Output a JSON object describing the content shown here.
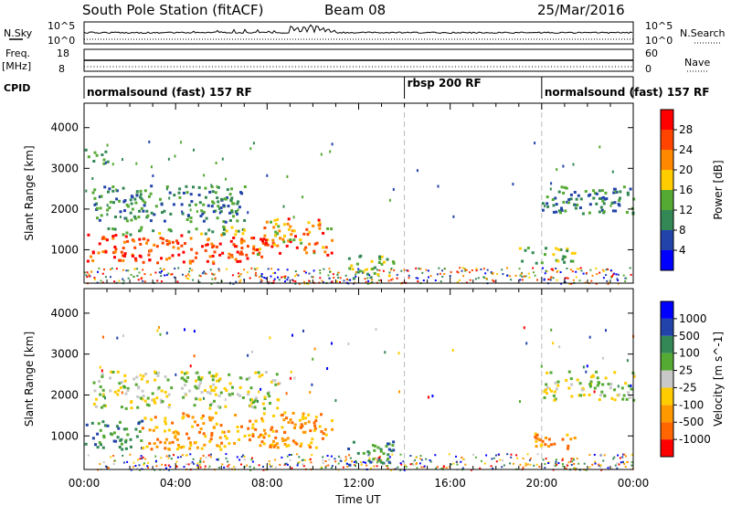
{
  "header": {
    "station": "South Pole Station (fitACF)",
    "beam": "Beam 08",
    "date": "25/Mar/2016"
  },
  "left_labels": {
    "nsky": "N.Sky",
    "nsky_top": "10^5",
    "nsky_bottom": "10^0",
    "freq": "Freq.",
    "freq_unit": "[MHz]",
    "freq_top": "18",
    "freq_bottom": "8",
    "cpid": "CPID"
  },
  "right_labels": {
    "nsearch": "N.Search",
    "nsearch_top": "10^5",
    "nsearch_bottom": "10^0",
    "nave": "Nave",
    "nave_top": "60",
    "nave_bottom": "0"
  },
  "cpid_segments": [
    {
      "label": "normalsound (fast) 157 RF",
      "start_h": 0,
      "end_h": 14
    },
    {
      "label": "rbsp 200 RF",
      "start_h": 14,
      "end_h": 20
    },
    {
      "label": "normalsound (fast) 157 RF",
      "start_h": 20,
      "end_h": 24
    }
  ],
  "colors": {
    "power": [
      "#0000ff",
      "#2244aa",
      "#338855",
      "#55aa33",
      "#ffcc00",
      "#ff8800",
      "#ff4400",
      "#ff0000"
    ],
    "velocity": [
      "#ff0000",
      "#ff6600",
      "#ff9900",
      "#ffcc00",
      "#c8c8c8",
      "#55aa33",
      "#338855",
      "#2244aa",
      "#0000ff"
    ]
  },
  "chart_data": [
    {
      "type": "heatmap",
      "name": "power",
      "xlabel": "",
      "ylabel": "Slant Range [km]",
      "xlim": [
        0,
        24
      ],
      "ylim": [
        180,
        4600
      ],
      "yticks": [
        1000,
        2000,
        3000,
        4000
      ],
      "colorbar_label": "Power [dB]",
      "colorbar_ticks": [
        "4",
        "8",
        "12",
        "16",
        "20",
        "24",
        "28"
      ],
      "regions": [
        {
          "t0": 0.0,
          "t1": 7.9,
          "r0": 700,
          "r1": 1400,
          "level": "high"
        },
        {
          "t0": 7.5,
          "t1": 10.8,
          "r0": 900,
          "r1": 1800,
          "level": "mid-high"
        },
        {
          "t0": 0.0,
          "t1": 7.0,
          "r0": 1400,
          "r1": 1600,
          "level": "mid"
        },
        {
          "t0": 0.3,
          "t1": 7.0,
          "r0": 1700,
          "r1": 2600,
          "level": "low"
        },
        {
          "t0": 0.0,
          "t1": 1.0,
          "r0": 3100,
          "r1": 3500,
          "level": "low"
        },
        {
          "t0": 11.5,
          "t1": 13.5,
          "r0": 300,
          "r1": 900,
          "level": "mid"
        },
        {
          "t0": 20.0,
          "t1": 24.0,
          "r0": 1900,
          "r1": 2600,
          "level": "low"
        },
        {
          "t0": 19.0,
          "t1": 21.5,
          "r0": 700,
          "r1": 1100,
          "level": "mid"
        }
      ]
    },
    {
      "type": "heatmap",
      "name": "velocity",
      "xlabel": "Time UT",
      "ylabel": "Slant Range [km]",
      "xlim": [
        0,
        24
      ],
      "ylim": [
        180,
        4600
      ],
      "yticks": [
        1000,
        2000,
        3000,
        4000
      ],
      "xticks": [
        "00:00",
        "04:00",
        "08:00",
        "12:00",
        "16:00",
        "20:00",
        "00:00"
      ],
      "colorbar_label": "Velocity [m s^-1]",
      "colorbar_ticks": [
        "-1000",
        "-500",
        "-100",
        "-25",
        "25",
        "100",
        "500",
        "1000"
      ],
      "regions": [
        {
          "t0": 0.0,
          "t1": 2.5,
          "r0": 700,
          "r1": 1400,
          "level": "positive"
        },
        {
          "t0": 2.5,
          "t1": 10.8,
          "r0": 700,
          "r1": 1600,
          "level": "negative"
        },
        {
          "t0": 0.3,
          "t1": 8.5,
          "r0": 1700,
          "r1": 2600,
          "level": "near-zero"
        },
        {
          "t0": 11.5,
          "t1": 13.5,
          "r0": 300,
          "r1": 900,
          "level": "positive"
        },
        {
          "t0": 20.0,
          "t1": 24.0,
          "r0": 1900,
          "r1": 2600,
          "level": "near-zero"
        },
        {
          "t0": 19.5,
          "t1": 21.5,
          "r0": 700,
          "r1": 1100,
          "level": "negative"
        }
      ]
    }
  ]
}
